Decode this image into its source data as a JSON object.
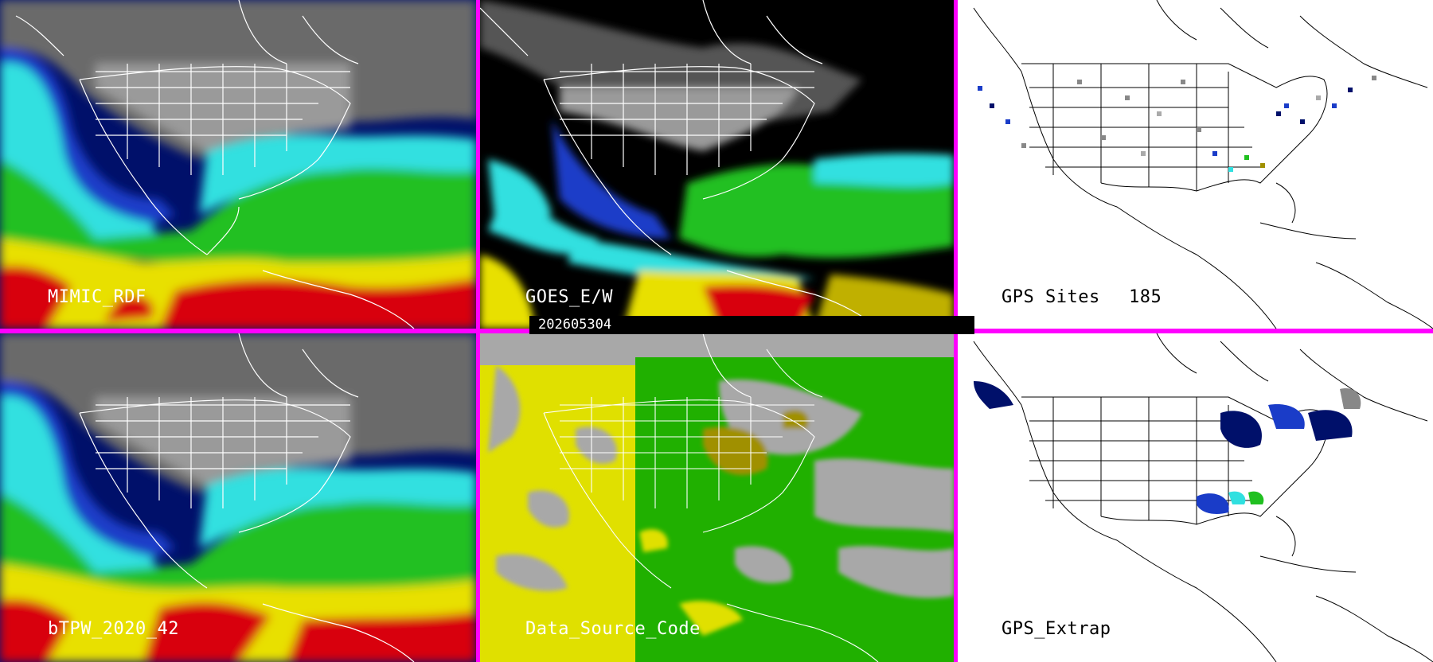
{
  "panels": {
    "mimic_rdf": {
      "label": "MIMIC_RDF"
    },
    "goes_ew": {
      "label": "GOES_E/W"
    },
    "gps_sites": {
      "label": "GPS Sites",
      "count": "185"
    },
    "btpw": {
      "label": "bTPW_2020_42"
    },
    "data_source_code": {
      "label": "Data_Source_Code"
    },
    "gps_extrap": {
      "label": "GPS_Extrap"
    }
  },
  "timestamp": "202605304",
  "colors": {
    "divider": "#ff00ff",
    "tpw_low_gray": "#808080",
    "tpw_blue": "#1a3cc8",
    "tpw_navy": "#00106a",
    "tpw_cyan": "#30e0e0",
    "tpw_green": "#20c020",
    "tpw_yellow": "#e8e000",
    "tpw_red": "#d80010",
    "dsc_gray": "#a8a8a8",
    "dsc_yellow": "#e0e000",
    "dsc_green": "#20b000",
    "dsc_olive": "#a09000"
  }
}
